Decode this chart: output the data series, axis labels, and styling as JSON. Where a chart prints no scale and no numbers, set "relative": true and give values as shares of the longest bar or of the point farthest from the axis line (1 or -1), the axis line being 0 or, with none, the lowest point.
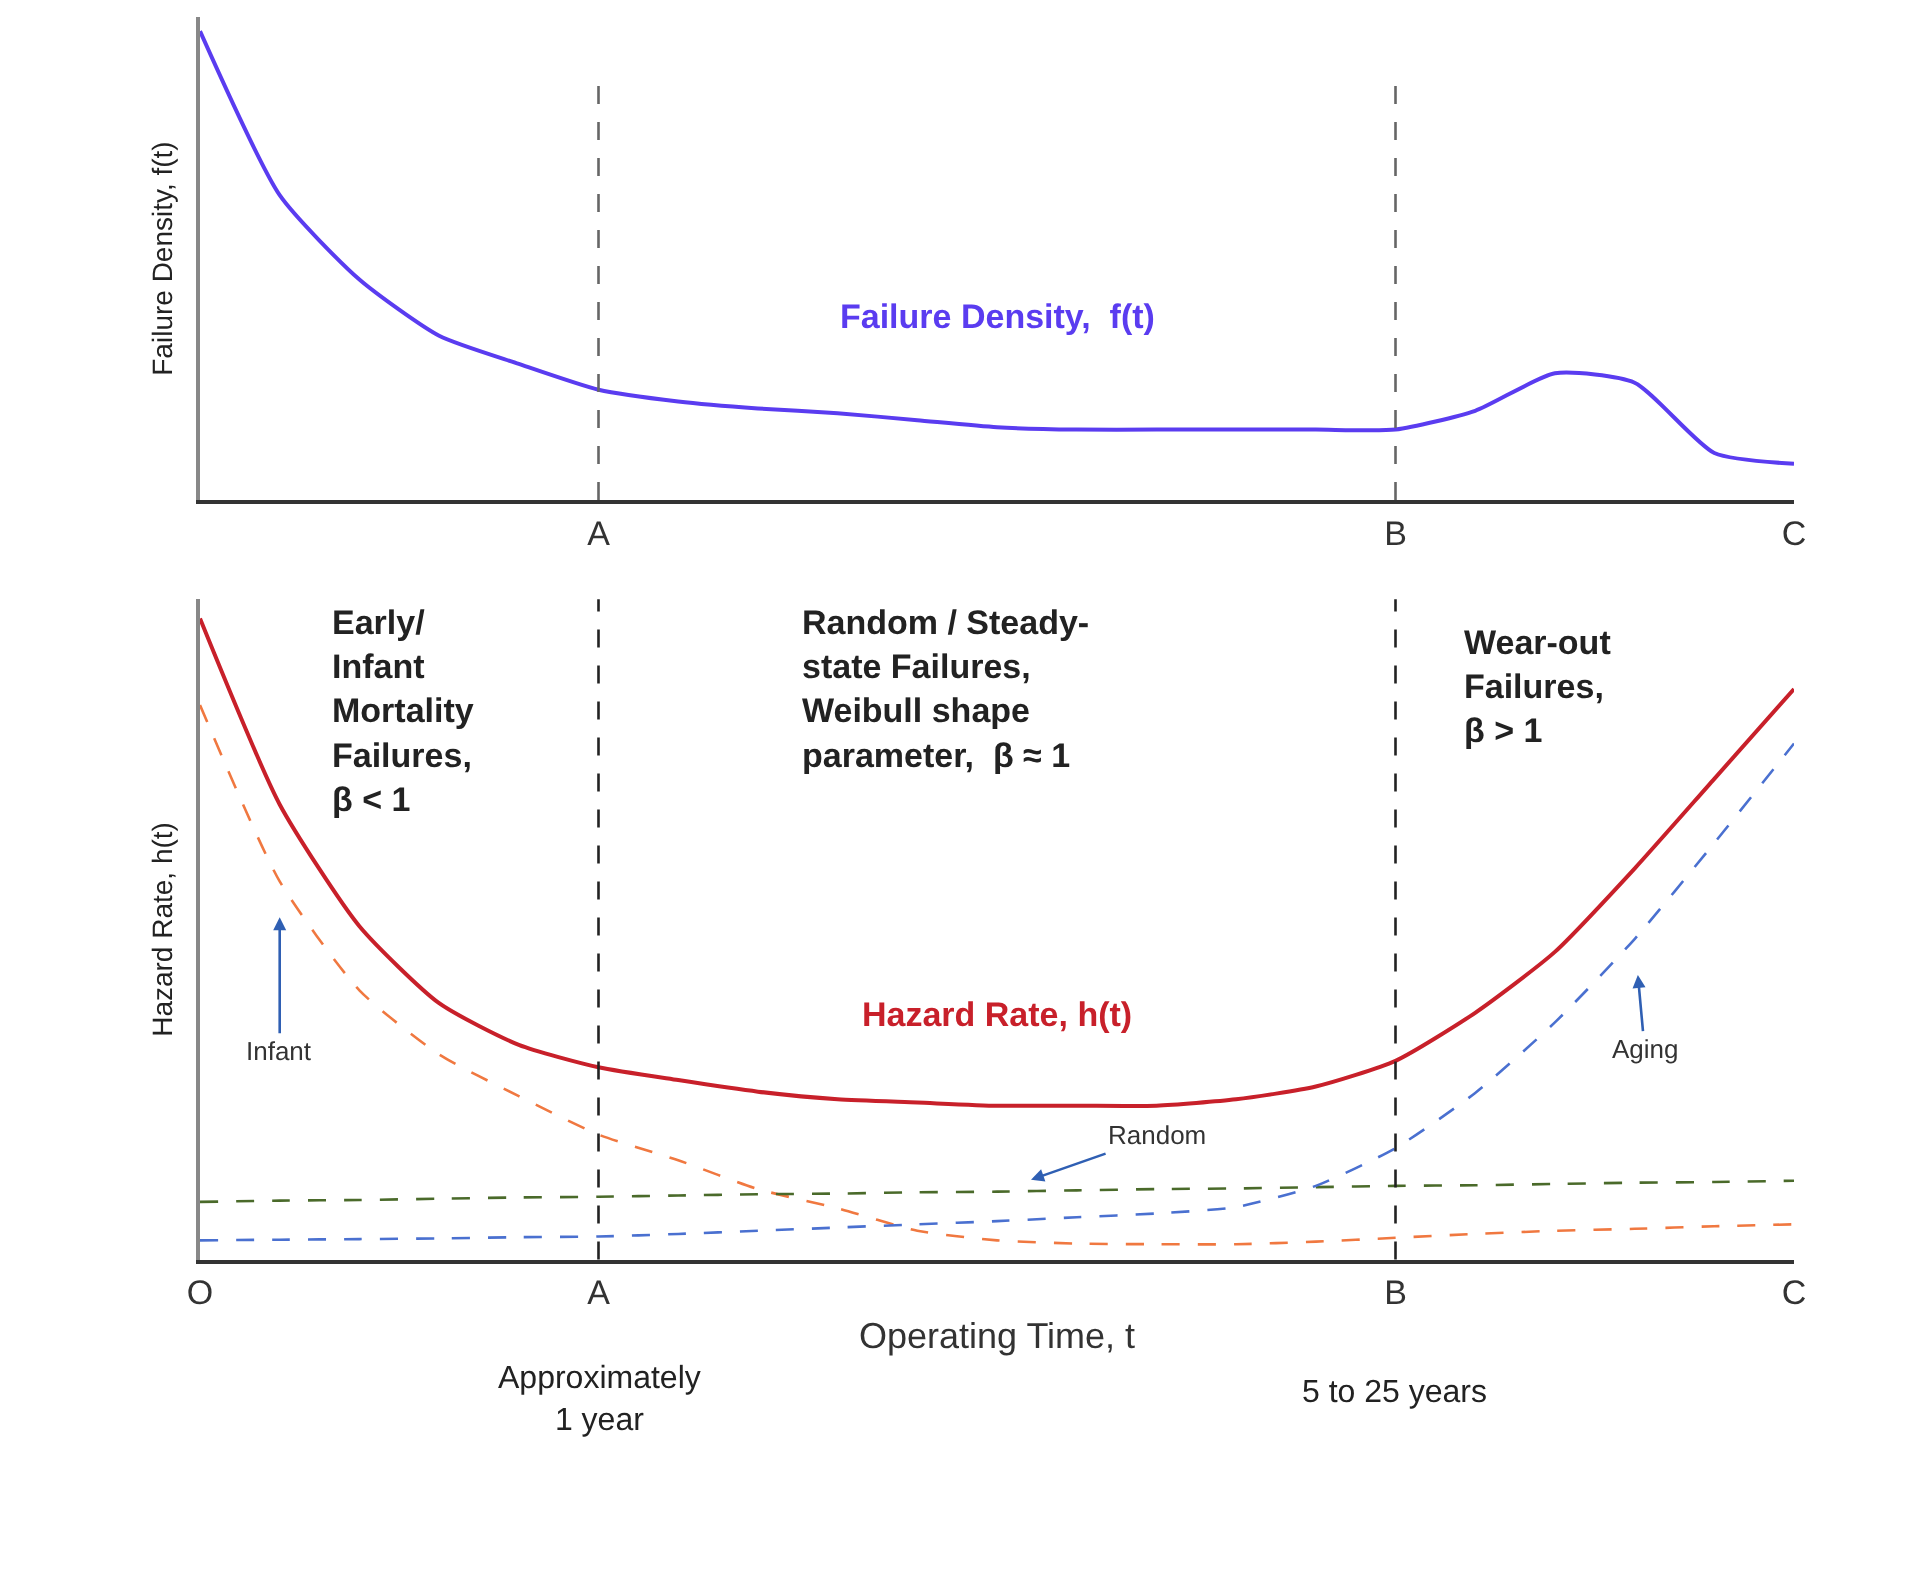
{
  "chart_data": [
    {
      "type": "line",
      "relative": true,
      "ylabel": "Failure Density, f(t)",
      "categories": [
        null,
        null,
        null,
        null,
        null,
        "A",
        null,
        null,
        null,
        null,
        null,
        null,
        null,
        null,
        null,
        "B",
        null,
        null,
        null,
        null,
        "C"
      ],
      "tick_labels": "x",
      "legend": false,
      "marker": "none",
      "series": [
        {
          "name": "Failure Density,  f(t)",
          "color": "#5a3cf0",
          "line_style": "solid",
          "values": [
            1.0,
            0.65,
            0.47,
            0.35,
            0.29,
            0.235,
            0.21,
            0.195,
            0.185,
            0.17,
            0.155,
            0.15,
            0.15,
            0.15,
            0.15,
            0.15,
            0.19,
            0.27,
            0.25,
            0.1,
            0.077
          ]
        }
      ],
      "ref_lines": [
        {
          "axis": "x",
          "value": "A",
          "color": "#666666",
          "line_style": "dashed"
        },
        {
          "axis": "x",
          "value": "B",
          "color": "#666666",
          "line_style": "dashed"
        }
      ]
    },
    {
      "type": "line",
      "relative": true,
      "ylabel": "Hazard Rate, h(t)",
      "xlabel": "Operating Time, t",
      "categories": [
        "O",
        null,
        null,
        null,
        null,
        "A",
        null,
        null,
        null,
        null,
        null,
        null,
        null,
        null,
        null,
        "B",
        null,
        null,
        null,
        null,
        "C"
      ],
      "tick_labels": "x",
      "legend": false,
      "marker": "none",
      "series": [
        {
          "name": "Hazard Rate, h(t)",
          "color": "#c8202a",
          "line_style": "solid",
          "values": [
            1.0,
            0.71,
            0.52,
            0.4,
            0.335,
            0.3,
            0.28,
            0.262,
            0.25,
            0.245,
            0.24,
            0.24,
            0.24,
            0.25,
            0.27,
            0.31,
            0.385,
            0.48,
            0.61,
            0.75,
            0.89
          ]
        },
        {
          "name": "Infant",
          "color": "#f07840",
          "line_style": "dashed",
          "values": [
            0.865,
            0.59,
            0.42,
            0.32,
            0.255,
            0.195,
            0.155,
            0.11,
            0.08,
            0.045,
            0.03,
            0.025,
            0.024,
            0.024,
            0.028,
            0.034,
            0.04,
            0.045,
            0.048,
            0.052,
            0.055
          ]
        },
        {
          "name": "Random",
          "color": "#4a6a2a",
          "line_style": "dashed",
          "values": [
            0.09,
            0.092,
            0.093,
            0.095,
            0.097,
            0.098,
            0.1,
            0.102,
            0.103,
            0.105,
            0.106,
            0.108,
            0.11,
            0.111,
            0.113,
            0.115,
            0.116,
            0.118,
            0.12,
            0.121,
            0.123
          ]
        },
        {
          "name": "Aging",
          "color": "#4a70d0",
          "line_style": "dashed",
          "values": [
            0.03,
            0.031,
            0.032,
            0.033,
            0.035,
            0.036,
            0.04,
            0.045,
            0.05,
            0.055,
            0.06,
            0.066,
            0.072,
            0.082,
            0.115,
            0.174,
            0.26,
            0.37,
            0.5,
            0.65,
            0.805
          ]
        }
      ],
      "ref_lines": [
        {
          "axis": "x",
          "value": "A",
          "color": "#222222",
          "line_style": "dashed"
        },
        {
          "axis": "x",
          "value": "B",
          "color": "#222222",
          "line_style": "dashed"
        }
      ],
      "annotations": [
        "Early/\nInfant\nMortality\nFailures,\nβ < 1",
        "Random / Steady-\nstate Failures,\nWeibull shape\nparameter,  β ≈ 1",
        "Wear-out\nFailures,\nβ > 1",
        "Approximately\n1 year",
        "5 to 25 years"
      ]
    }
  ]
}
